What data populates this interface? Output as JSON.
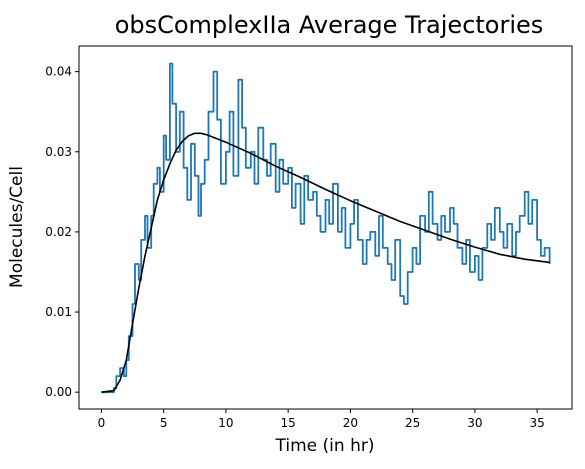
{
  "chart_data": {
    "type": "line",
    "title": "obsComplexIIa Average Trajectories",
    "xlabel": "Time (in hr)",
    "ylabel": "Molecules/Cell",
    "xlim": [
      -1.8,
      37.8
    ],
    "ylim": [
      -0.0021,
      0.0432
    ],
    "xticks": [
      0,
      5,
      10,
      15,
      20,
      25,
      30,
      35
    ],
    "yticks": [
      0.0,
      0.01,
      0.02,
      0.03,
      0.04
    ],
    "ytick_labels": [
      "0.00",
      "0.01",
      "0.02",
      "0.03",
      "0.04"
    ],
    "grid": false,
    "series": [
      {
        "style": "stochastic-step",
        "color": "#1f77b4",
        "x": [
          0,
          1.0,
          1.2,
          1.5,
          1.8,
          2.0,
          2.2,
          2.5,
          2.7,
          3.0,
          3.2,
          3.5,
          3.7,
          4.0,
          4.2,
          4.5,
          4.7,
          5.0,
          5.2,
          5.5,
          5.7,
          6.0,
          6.3,
          6.6,
          6.9,
          7.2,
          7.5,
          7.8,
          8.0,
          8.3,
          8.6,
          9.0,
          9.3,
          9.6,
          10.0,
          10.3,
          10.6,
          11.0,
          11.3,
          11.6,
          12.0,
          12.3,
          12.6,
          13.0,
          13.3,
          13.6,
          14.0,
          14.3,
          14.6,
          15.0,
          15.3,
          15.6,
          16.0,
          16.3,
          16.6,
          17.0,
          17.3,
          17.6,
          18.0,
          18.3,
          18.6,
          19.0,
          19.3,
          19.6,
          20.0,
          20.3,
          20.6,
          21.0,
          21.3,
          21.6,
          22.0,
          22.3,
          22.6,
          23.0,
          23.3,
          23.6,
          24.0,
          24.3,
          24.6,
          25.0,
          25.3,
          25.6,
          26.0,
          26.3,
          26.6,
          27.0,
          27.3,
          27.6,
          28.0,
          28.3,
          28.6,
          29.0,
          29.3,
          29.6,
          30.0,
          30.3,
          30.6,
          31.0,
          31.3,
          31.6,
          32.0,
          32.3,
          32.6,
          33.0,
          33.3,
          33.6,
          34.0,
          34.3,
          34.6,
          35.0,
          35.3,
          35.6,
          36.0
        ],
        "values": [
          0.0,
          0.0005,
          0.002,
          0.003,
          0.002,
          0.004,
          0.007,
          0.011,
          0.016,
          0.014,
          0.019,
          0.022,
          0.018,
          0.022,
          0.026,
          0.028,
          0.025,
          0.032,
          0.029,
          0.041,
          0.036,
          0.03,
          0.035,
          0.028,
          0.024,
          0.031,
          0.027,
          0.022,
          0.026,
          0.029,
          0.035,
          0.04,
          0.034,
          0.026,
          0.03,
          0.035,
          0.027,
          0.039,
          0.033,
          0.028,
          0.03,
          0.026,
          0.033,
          0.029,
          0.027,
          0.031,
          0.025,
          0.029,
          0.026,
          0.028,
          0.023,
          0.026,
          0.021,
          0.027,
          0.024,
          0.025,
          0.022,
          0.02,
          0.024,
          0.021,
          0.026,
          0.02,
          0.023,
          0.018,
          0.021,
          0.024,
          0.019,
          0.016,
          0.019,
          0.02,
          0.017,
          0.022,
          0.018,
          0.016,
          0.014,
          0.019,
          0.012,
          0.011,
          0.015,
          0.018,
          0.016,
          0.022,
          0.02,
          0.025,
          0.021,
          0.019,
          0.022,
          0.02,
          0.023,
          0.021,
          0.018,
          0.016,
          0.019,
          0.015,
          0.017,
          0.014,
          0.018,
          0.021,
          0.019,
          0.023,
          0.02,
          0.018,
          0.021,
          0.017,
          0.02,
          0.022,
          0.025,
          0.021,
          0.024,
          0.019,
          0.017,
          0.018,
          0.016
        ]
      },
      {
        "style": "smooth",
        "color": "#000000",
        "x": [
          0,
          1.0,
          1.5,
          2.0,
          2.5,
          3.0,
          3.5,
          4.0,
          4.5,
          5.0,
          5.5,
          6.0,
          6.5,
          7.0,
          7.5,
          8.0,
          8.5,
          9.0,
          10,
          11,
          12,
          13,
          14,
          15,
          16,
          18,
          20,
          22,
          24,
          26,
          28,
          30,
          32,
          34,
          36
        ],
        "values": [
          0.0,
          0.0002,
          0.0015,
          0.004,
          0.0085,
          0.013,
          0.017,
          0.0205,
          0.024,
          0.0265,
          0.0285,
          0.0302,
          0.0313,
          0.032,
          0.0323,
          0.0323,
          0.0321,
          0.0318,
          0.0312,
          0.0305,
          0.0298,
          0.029,
          0.0282,
          0.0275,
          0.0268,
          0.0253,
          0.0239,
          0.0226,
          0.0213,
          0.0202,
          0.0191,
          0.0181,
          0.0172,
          0.0166,
          0.0162
        ]
      }
    ]
  }
}
